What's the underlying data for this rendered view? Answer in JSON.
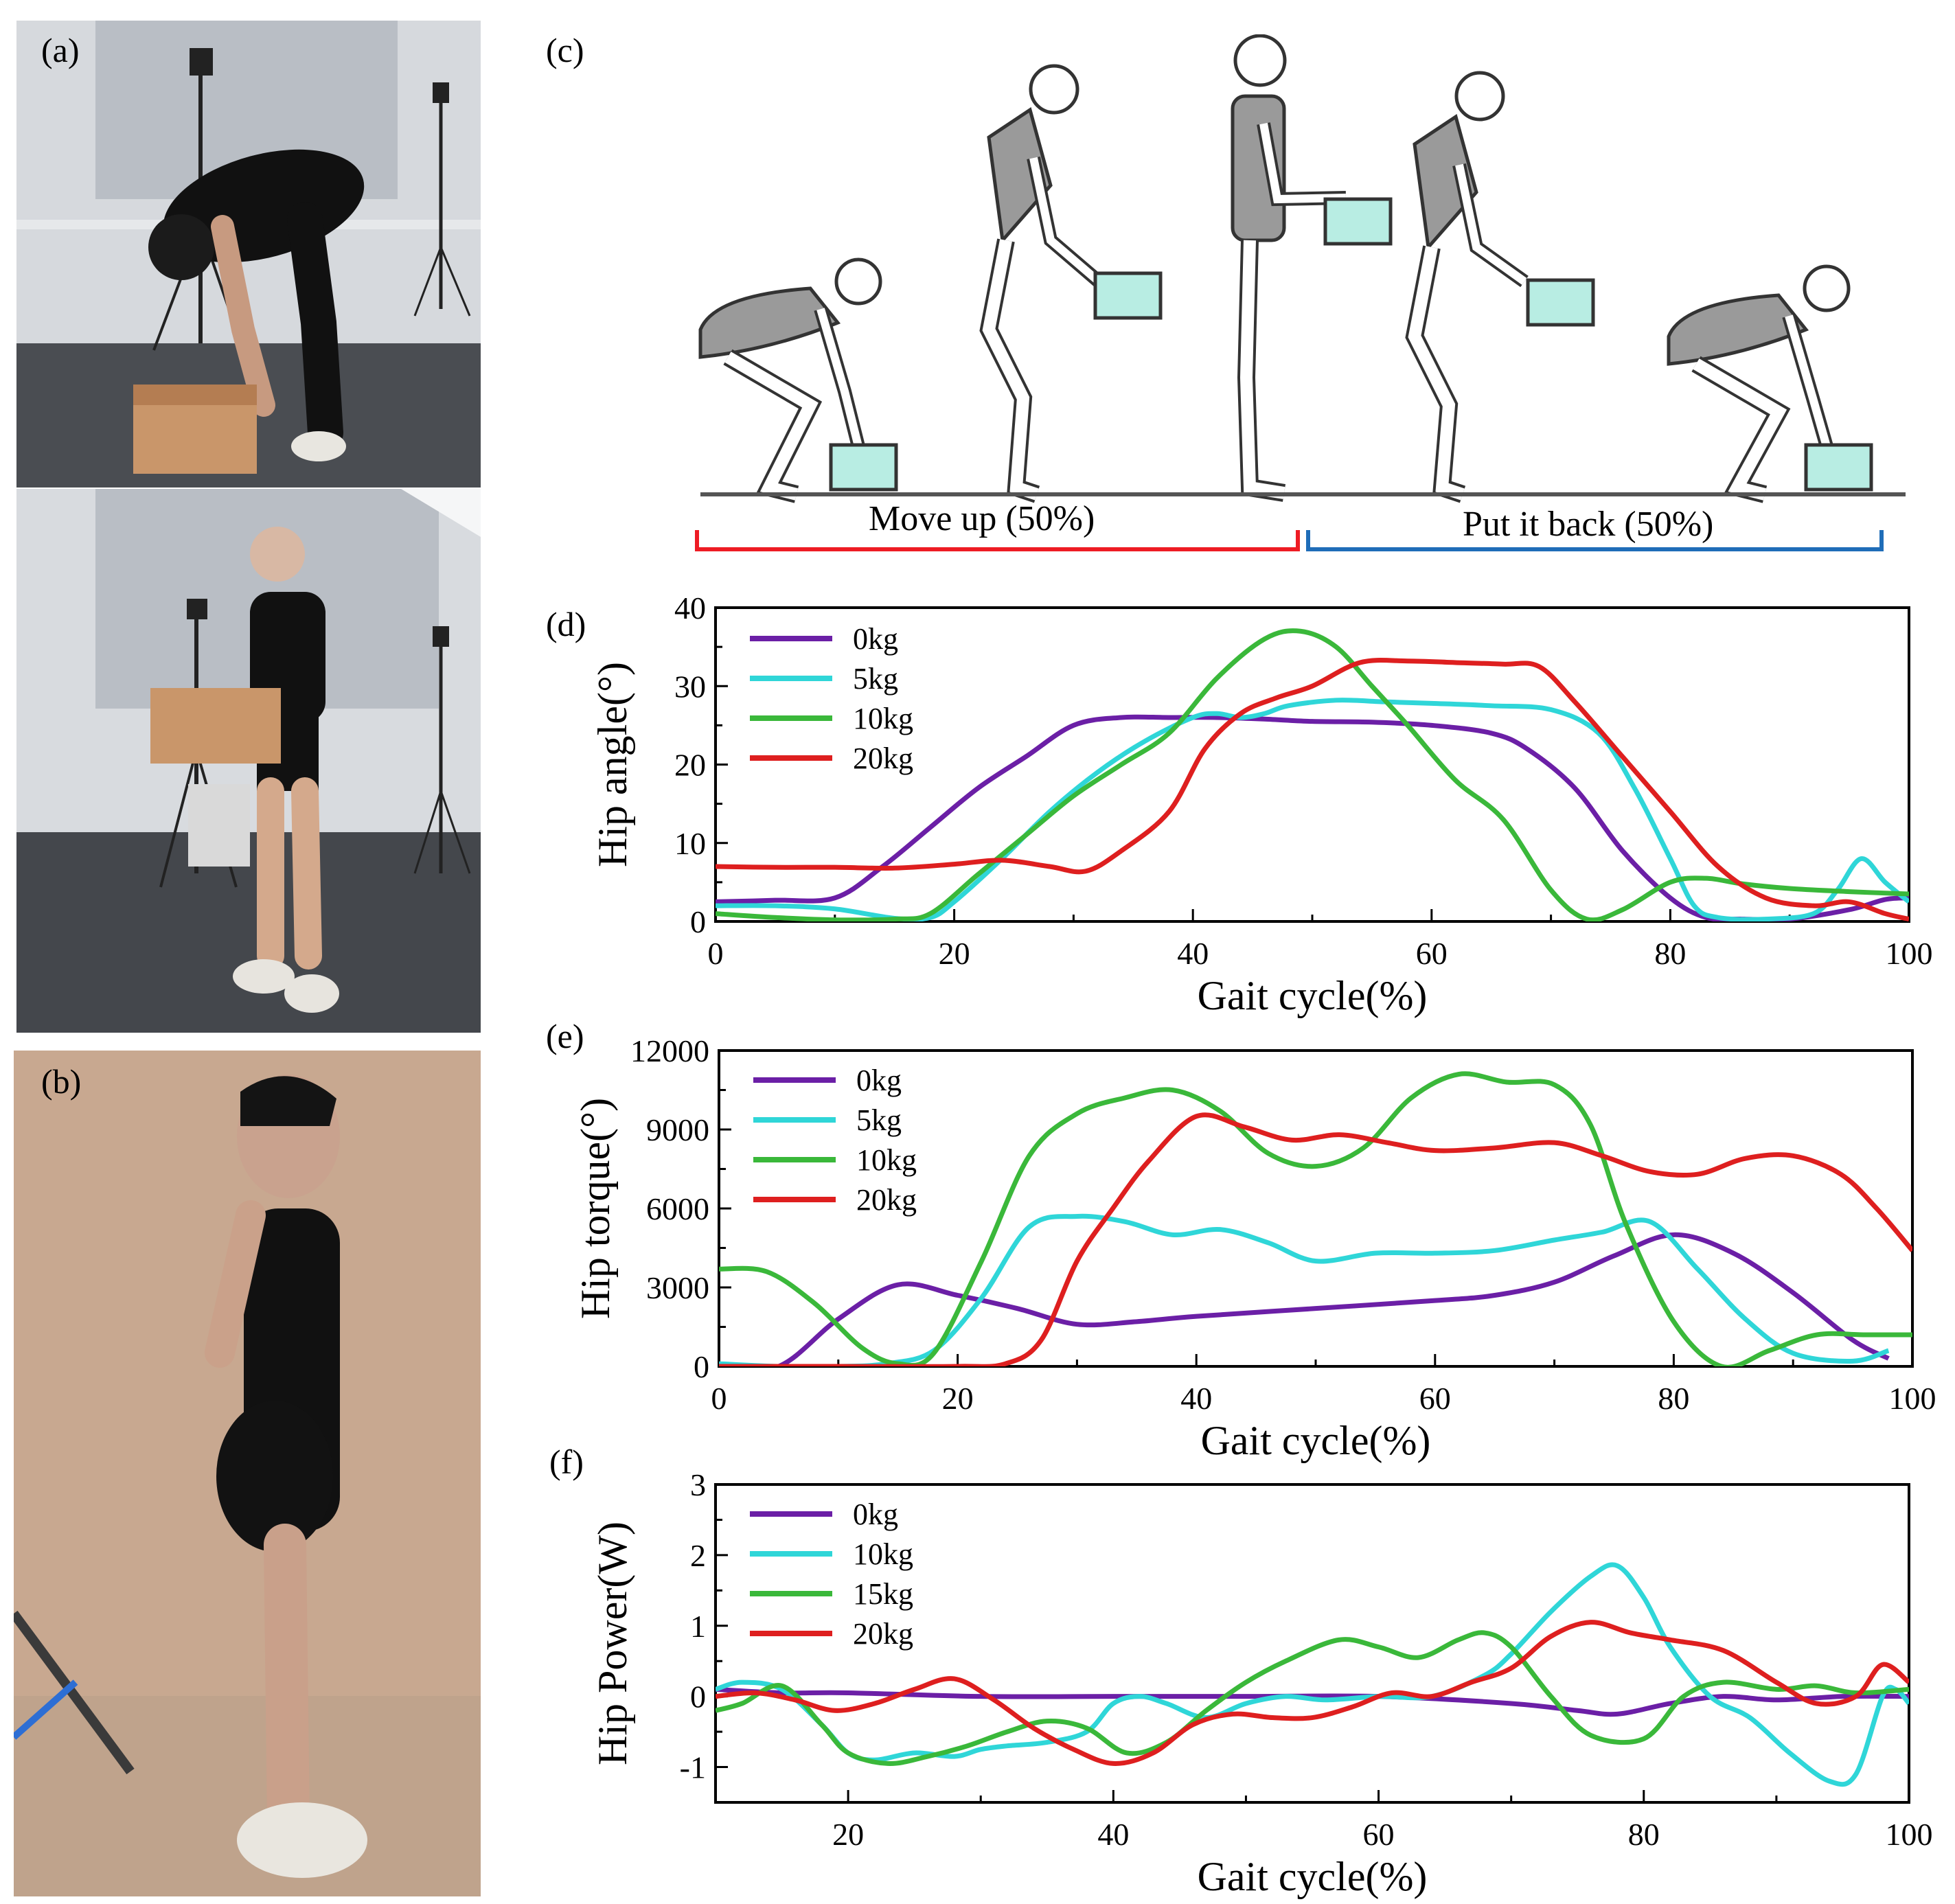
{
  "panels": {
    "a": "(a)",
    "b": "(b)",
    "c": "(c)",
    "d": "(d)",
    "e": "(e)",
    "f": "(f)"
  },
  "phases": {
    "move_up": "Move up (50%)",
    "put_back": "Put it back (50%)",
    "move_up_color": "#ee1c24",
    "put_back_color": "#1f6db8"
  },
  "chart_data": [
    {
      "type": "line",
      "panel": "d",
      "xlabel": "Gait cycle(%)",
      "ylabel": "Hip angle(°)",
      "xlim": [
        0,
        100
      ],
      "ylim": [
        0,
        40
      ],
      "xticks": [
        0,
        20,
        40,
        60,
        80,
        100
      ],
      "yticks": [
        0,
        10,
        20,
        30,
        40
      ],
      "legend": "top-left",
      "series": [
        {
          "name": "0kg",
          "color": "#6b1fa6",
          "x": [
            0,
            5,
            10,
            14,
            18,
            22,
            26,
            30,
            34,
            38,
            42,
            46,
            50,
            55,
            60,
            65,
            68,
            72,
            76,
            80,
            83,
            86,
            90,
            95,
            98,
            100
          ],
          "y": [
            2.5,
            2.7,
            3,
            7,
            12,
            17,
            21,
            25,
            26,
            26,
            26,
            25.8,
            25.5,
            25.4,
            25,
            24,
            22,
            17,
            9,
            3,
            0.5,
            0.3,
            0.3,
            1.5,
            2.8,
            3
          ]
        },
        {
          "name": "5kg",
          "color": "#2fd6d8",
          "x": [
            0,
            5,
            10,
            15,
            18,
            20,
            24,
            28,
            32,
            36,
            40,
            42,
            44,
            46,
            48,
            52,
            56,
            60,
            65,
            70,
            74,
            77,
            80,
            82,
            84,
            88,
            92,
            94,
            96,
            98,
            100
          ],
          "y": [
            2,
            2,
            1.6,
            0.4,
            0.5,
            2.5,
            8,
            14,
            19,
            23,
            26,
            26.5,
            26,
            26.5,
            27.5,
            28.2,
            28,
            27.8,
            27.5,
            27,
            24,
            17,
            8,
            2,
            0.5,
            0.3,
            1,
            4,
            8,
            5,
            2.5
          ]
        },
        {
          "name": "10kg",
          "color": "#3ab83a",
          "x": [
            0,
            5,
            10,
            15,
            18,
            22,
            26,
            30,
            34,
            38,
            42,
            46,
            49,
            52,
            55,
            58,
            62,
            66,
            70,
            73,
            76,
            80,
            83,
            86,
            90,
            95,
            100
          ],
          "y": [
            1,
            0.5,
            0.2,
            0.3,
            1,
            6,
            11,
            16,
            20,
            24,
            31,
            36,
            37,
            35,
            30,
            25,
            18,
            13,
            4,
            0.3,
            1.5,
            5,
            5.5,
            4.8,
            4.2,
            3.8,
            3.5
          ]
        },
        {
          "name": "20kg",
          "color": "#de1f1f",
          "x": [
            0,
            5,
            10,
            15,
            20,
            24,
            28,
            31,
            34,
            38,
            41,
            44,
            47,
            50,
            54,
            58,
            62,
            66,
            69,
            72,
            76,
            80,
            84,
            88,
            92,
            95,
            98,
            100
          ],
          "y": [
            7,
            6.9,
            6.9,
            6.8,
            7.3,
            7.8,
            7,
            6.4,
            9,
            14,
            22,
            26.5,
            28.5,
            30,
            33,
            33.2,
            33,
            32.8,
            32.5,
            28,
            21,
            14,
            7,
            3,
            2,
            2.5,
            1,
            0.3
          ]
        }
      ]
    },
    {
      "type": "line",
      "panel": "e",
      "xlabel": "Gait cycle(%)",
      "ylabel": "Hip torque(°)",
      "xlim": [
        0,
        100
      ],
      "ylim": [
        0,
        12000
      ],
      "xticks": [
        0,
        20,
        40,
        60,
        80,
        100
      ],
      "yticks": [
        0,
        3000,
        6000,
        9000,
        12000
      ],
      "legend": "top-left",
      "series": [
        {
          "name": "0kg",
          "color": "#6b1fa6",
          "x": [
            0,
            5,
            10,
            15,
            20,
            25,
            30,
            35,
            40,
            50,
            60,
            65,
            70,
            75,
            80,
            85,
            90,
            95,
            98
          ],
          "y": [
            0,
            0,
            1800,
            3100,
            2700,
            2200,
            1600,
            1700,
            1900,
            2200,
            2500,
            2700,
            3200,
            4200,
            5000,
            4300,
            2800,
            1000,
            300
          ]
        },
        {
          "name": "5kg",
          "color": "#2fd6d8",
          "x": [
            0,
            5,
            10,
            14,
            18,
            22,
            26,
            30,
            34,
            38,
            42,
            46,
            50,
            55,
            60,
            65,
            70,
            74,
            78,
            82,
            86,
            90,
            95,
            98
          ],
          "y": [
            100,
            0,
            0,
            100,
            600,
            2600,
            5300,
            5700,
            5500,
            5000,
            5200,
            4700,
            4000,
            4300,
            4300,
            4400,
            4800,
            5100,
            5500,
            3700,
            1800,
            500,
            200,
            600
          ]
        },
        {
          "name": "10kg",
          "color": "#3ab83a",
          "x": [
            0,
            4,
            8,
            12,
            15,
            18,
            22,
            26,
            30,
            34,
            38,
            42,
            46,
            50,
            54,
            58,
            62,
            66,
            70,
            73,
            76,
            80,
            84,
            88,
            92,
            96,
            100
          ],
          "y": [
            3700,
            3600,
            2400,
            700,
            100,
            500,
            4000,
            8000,
            9600,
            10200,
            10500,
            9700,
            8100,
            7600,
            8300,
            10200,
            11100,
            10800,
            10700,
            9200,
            5400,
            1700,
            0,
            600,
            1200,
            1200,
            1200
          ]
        },
        {
          "name": "20kg",
          "color": "#de1f1f",
          "x": [
            0,
            10,
            20,
            24,
            27,
            30,
            33,
            36,
            40,
            44,
            48,
            52,
            56,
            60,
            65,
            70,
            74,
            78,
            82,
            86,
            90,
            94,
            97,
            100
          ],
          "y": [
            0,
            0,
            0,
            100,
            1000,
            4000,
            6000,
            7800,
            9500,
            9100,
            8600,
            8800,
            8500,
            8200,
            8300,
            8500,
            8000,
            7400,
            7300,
            7900,
            8000,
            7300,
            6000,
            4400
          ]
        }
      ]
    },
    {
      "type": "line",
      "panel": "f",
      "xlabel": "Gait cycle(%)",
      "ylabel": "Hip Power(W)",
      "xlim": [
        10,
        100
      ],
      "ylim": [
        -1.5,
        3
      ],
      "xticks": [
        20,
        40,
        60,
        80,
        100
      ],
      "yticks": [
        -1,
        0,
        1,
        2,
        3
      ],
      "legend": "top-left",
      "series": [
        {
          "name": "0kg",
          "color": "#6b1fa6",
          "x": [
            10,
            15,
            20,
            30,
            40,
            50,
            60,
            70,
            75,
            78,
            82,
            86,
            90,
            95,
            100
          ],
          "y": [
            0.1,
            0.05,
            0.05,
            0,
            0,
            0,
            0,
            -0.1,
            -0.2,
            -0.25,
            -0.1,
            0,
            -0.05,
            0,
            0
          ]
        },
        {
          "name": "10kg",
          "color": "#2fd6d8",
          "x": [
            10,
            12,
            15,
            18,
            20,
            22,
            25,
            28,
            30,
            32,
            35,
            38,
            40,
            42,
            44,
            47,
            50,
            53,
            56,
            60,
            64,
            68,
            70,
            73,
            76,
            78,
            80,
            82,
            85,
            88,
            91,
            94,
            96,
            98,
            99,
            100
          ],
          "y": [
            0.1,
            0.2,
            0.1,
            -0.4,
            -0.8,
            -0.9,
            -0.8,
            -0.85,
            -0.75,
            -0.7,
            -0.65,
            -0.5,
            -0.1,
            0,
            -0.1,
            -0.3,
            -0.1,
            0,
            -0.05,
            0,
            0,
            0.3,
            0.6,
            1.2,
            1.7,
            1.85,
            1.4,
            0.7,
            0,
            -0.3,
            -0.8,
            -1.2,
            -1.1,
            0,
            0.1,
            -0.1
          ]
        },
        {
          "name": "15kg",
          "color": "#3ab83a",
          "x": [
            10,
            12,
            15,
            18,
            20,
            23,
            26,
            29,
            32,
            35,
            38,
            41,
            44,
            47,
            50,
            53,
            57,
            60,
            63,
            66,
            68,
            70,
            73,
            76,
            80,
            83,
            86,
            90,
            93,
            96,
            100
          ],
          "y": [
            -0.2,
            -0.1,
            0.15,
            -0.4,
            -0.8,
            -0.95,
            -0.85,
            -0.7,
            -0.5,
            -0.35,
            -0.45,
            -0.8,
            -0.65,
            -0.2,
            0.2,
            0.5,
            0.8,
            0.7,
            0.55,
            0.8,
            0.9,
            0.7,
            0,
            -0.55,
            -0.6,
            0,
            0.2,
            0.1,
            0.15,
            0.05,
            0.1
          ]
        },
        {
          "name": "20kg",
          "color": "#de1f1f",
          "x": [
            10,
            13,
            16,
            19,
            22,
            25,
            28,
            31,
            34,
            37,
            40,
            43,
            46,
            49,
            52,
            55,
            58,
            61,
            64,
            67,
            70,
            73,
            76,
            79,
            82,
            86,
            90,
            93,
            96,
            98,
            100
          ],
          "y": [
            0,
            0.05,
            -0.05,
            -0.2,
            -0.1,
            0.1,
            0.25,
            -0.05,
            -0.45,
            -0.75,
            -0.95,
            -0.8,
            -0.4,
            -0.25,
            -0.3,
            -0.3,
            -0.15,
            0.05,
            0,
            0.2,
            0.4,
            0.85,
            1.05,
            0.9,
            0.8,
            0.65,
            0.2,
            -0.1,
            0,
            0.45,
            0.2
          ]
        }
      ]
    }
  ]
}
